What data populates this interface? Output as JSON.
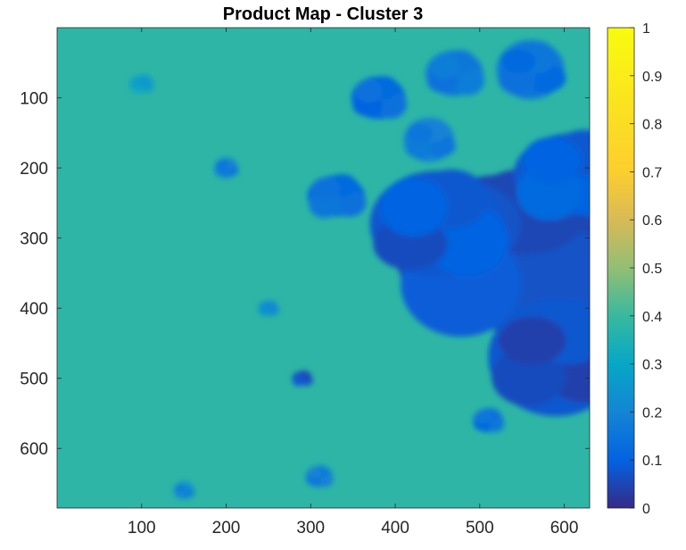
{
  "chart_data": {
    "type": "heatmap",
    "title": "Product Map - Cluster 3",
    "xlabel": "",
    "ylabel": "",
    "xlim": [
      0,
      630
    ],
    "ylim": [
      0,
      685
    ],
    "y_direction": "reversed",
    "x_ticks": [
      100,
      200,
      300,
      400,
      500,
      600
    ],
    "y_ticks": [
      100,
      200,
      300,
      400,
      500,
      600
    ],
    "x_tick_labels": [
      "100",
      "200",
      "300",
      "400",
      "500",
      "600"
    ],
    "y_tick_labels": [
      "100",
      "200",
      "300",
      "400",
      "500",
      "600"
    ],
    "colorbar": {
      "colormap": "parula",
      "range": [
        0,
        1
      ],
      "ticks": [
        0,
        0.1,
        0.2,
        0.3,
        0.4,
        0.5,
        0.6,
        0.7,
        0.8,
        0.9,
        1
      ],
      "tick_labels": [
        "0",
        "0.1",
        "0.2",
        "0.3",
        "0.4",
        "0.5",
        "0.6",
        "0.7",
        "0.8",
        "0.9",
        "1"
      ]
    },
    "background_level": 0.38,
    "regions": [
      {
        "x": 530,
        "y": 320,
        "r": 130,
        "value": 0.05
      },
      {
        "x": 450,
        "y": 280,
        "r": 80,
        "value": 0.06
      },
      {
        "x": 590,
        "y": 470,
        "r": 80,
        "value": 0.04
      },
      {
        "x": 610,
        "y": 210,
        "r": 70,
        "value": 0.08
      },
      {
        "x": 380,
        "y": 100,
        "r": 32,
        "value": 0.1
      },
      {
        "x": 560,
        "y": 60,
        "r": 40,
        "value": 0.12
      },
      {
        "x": 330,
        "y": 240,
        "r": 34,
        "value": 0.12
      },
      {
        "x": 470,
        "y": 65,
        "r": 34,
        "value": 0.14
      },
      {
        "x": 440,
        "y": 160,
        "r": 30,
        "value": 0.15
      },
      {
        "x": 290,
        "y": 500,
        "r": 12,
        "value": 0.05
      },
      {
        "x": 510,
        "y": 560,
        "r": 18,
        "value": 0.12
      },
      {
        "x": 200,
        "y": 200,
        "r": 14,
        "value": 0.15
      },
      {
        "x": 250,
        "y": 400,
        "r": 12,
        "value": 0.2
      },
      {
        "x": 310,
        "y": 640,
        "r": 16,
        "value": 0.15
      },
      {
        "x": 150,
        "y": 660,
        "r": 12,
        "value": 0.18
      },
      {
        "x": 100,
        "y": 80,
        "r": 14,
        "value": 0.25
      }
    ]
  }
}
